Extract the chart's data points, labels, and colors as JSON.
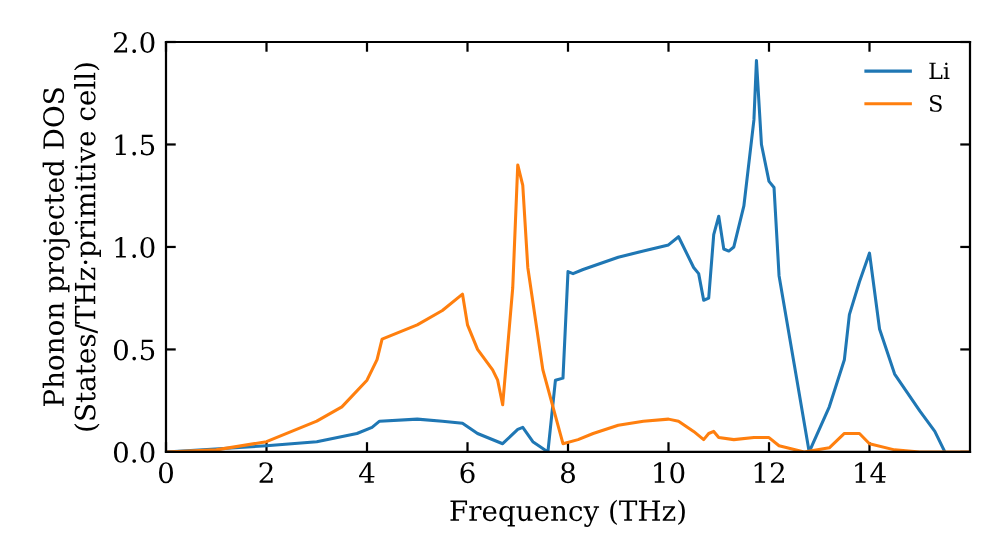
{
  "chart_data": {
    "type": "line",
    "xlabel": "Frequency (THz)",
    "ylabel": "Phonon projected DOS\n(States/THz·primitive cell)",
    "xlim": [
      0,
      16
    ],
    "ylim": [
      0,
      2.0
    ],
    "xticks": [
      0,
      2,
      4,
      6,
      8,
      10,
      12,
      14
    ],
    "yticks": [
      {
        "value": 0,
        "label": "0.0"
      },
      {
        "value": 0.5,
        "label": "0.5"
      },
      {
        "value": 1.0,
        "label": "1.0"
      },
      {
        "value": 1.5,
        "label": "1.5"
      },
      {
        "value": 2.0,
        "label": "2.0"
      }
    ],
    "grid": false,
    "legend": "top right",
    "marker": "none",
    "line_style": "solid",
    "series": [
      {
        "name": "Li",
        "color": "#1f77b4",
        "x": [
          0,
          2,
          3,
          3.8,
          4.1,
          4.25,
          5,
          5.5,
          5.9,
          6.2,
          6.7,
          7,
          7.1,
          7.3,
          7.6,
          7.75,
          7.9,
          8,
          8.1,
          8.3,
          9,
          9.5,
          10,
          10.2,
          10.5,
          10.6,
          10.7,
          10.8,
          10.9,
          11,
          11.1,
          11.2,
          11.3,
          11.5,
          11.7,
          11.75,
          11.85,
          12,
          12.1,
          12.2,
          12.5,
          12.8,
          13.2,
          13.5,
          13.6,
          13.8,
          14,
          14.2,
          14.5,
          15,
          15.3,
          15.5
        ],
        "values": [
          0,
          0.03,
          0.05,
          0.09,
          0.12,
          0.15,
          0.16,
          0.15,
          0.14,
          0.09,
          0.04,
          0.11,
          0.12,
          0.05,
          0.0,
          0.35,
          0.36,
          0.88,
          0.87,
          0.89,
          0.95,
          0.98,
          1.01,
          1.05,
          0.9,
          0.87,
          0.74,
          0.75,
          1.06,
          1.15,
          0.99,
          0.98,
          1.0,
          1.2,
          1.62,
          1.91,
          1.5,
          1.32,
          1.29,
          0.86,
          0.43,
          0.0,
          0.22,
          0.45,
          0.67,
          0.83,
          0.97,
          0.6,
          0.38,
          0.2,
          0.1,
          0.0
        ]
      },
      {
        "name": "S",
        "color": "#ff7f0e",
        "x": [
          0,
          1,
          2,
          3,
          3.5,
          4,
          4.2,
          4.3,
          5,
          5.5,
          5.9,
          6,
          6.2,
          6.5,
          6.6,
          6.7,
          6.9,
          7,
          7.1,
          7.2,
          7.5,
          7.9,
          8.2,
          8.5,
          9,
          9.5,
          10,
          10.2,
          10.5,
          10.7,
          10.8,
          10.9,
          11,
          11.3,
          11.7,
          12,
          12.2,
          12.7,
          13.2,
          13.5,
          13.8,
          14,
          14.5,
          15,
          16
        ],
        "values": [
          0,
          0.01,
          0.05,
          0.15,
          0.22,
          0.35,
          0.45,
          0.55,
          0.62,
          0.69,
          0.77,
          0.62,
          0.5,
          0.4,
          0.35,
          0.23,
          0.8,
          1.4,
          1.3,
          0.9,
          0.4,
          0.04,
          0.06,
          0.09,
          0.13,
          0.15,
          0.16,
          0.15,
          0.1,
          0.06,
          0.09,
          0.1,
          0.07,
          0.06,
          0.07,
          0.07,
          0.03,
          0.0,
          0.02,
          0.09,
          0.09,
          0.04,
          0.01,
          0.0,
          0.0
        ]
      }
    ]
  }
}
